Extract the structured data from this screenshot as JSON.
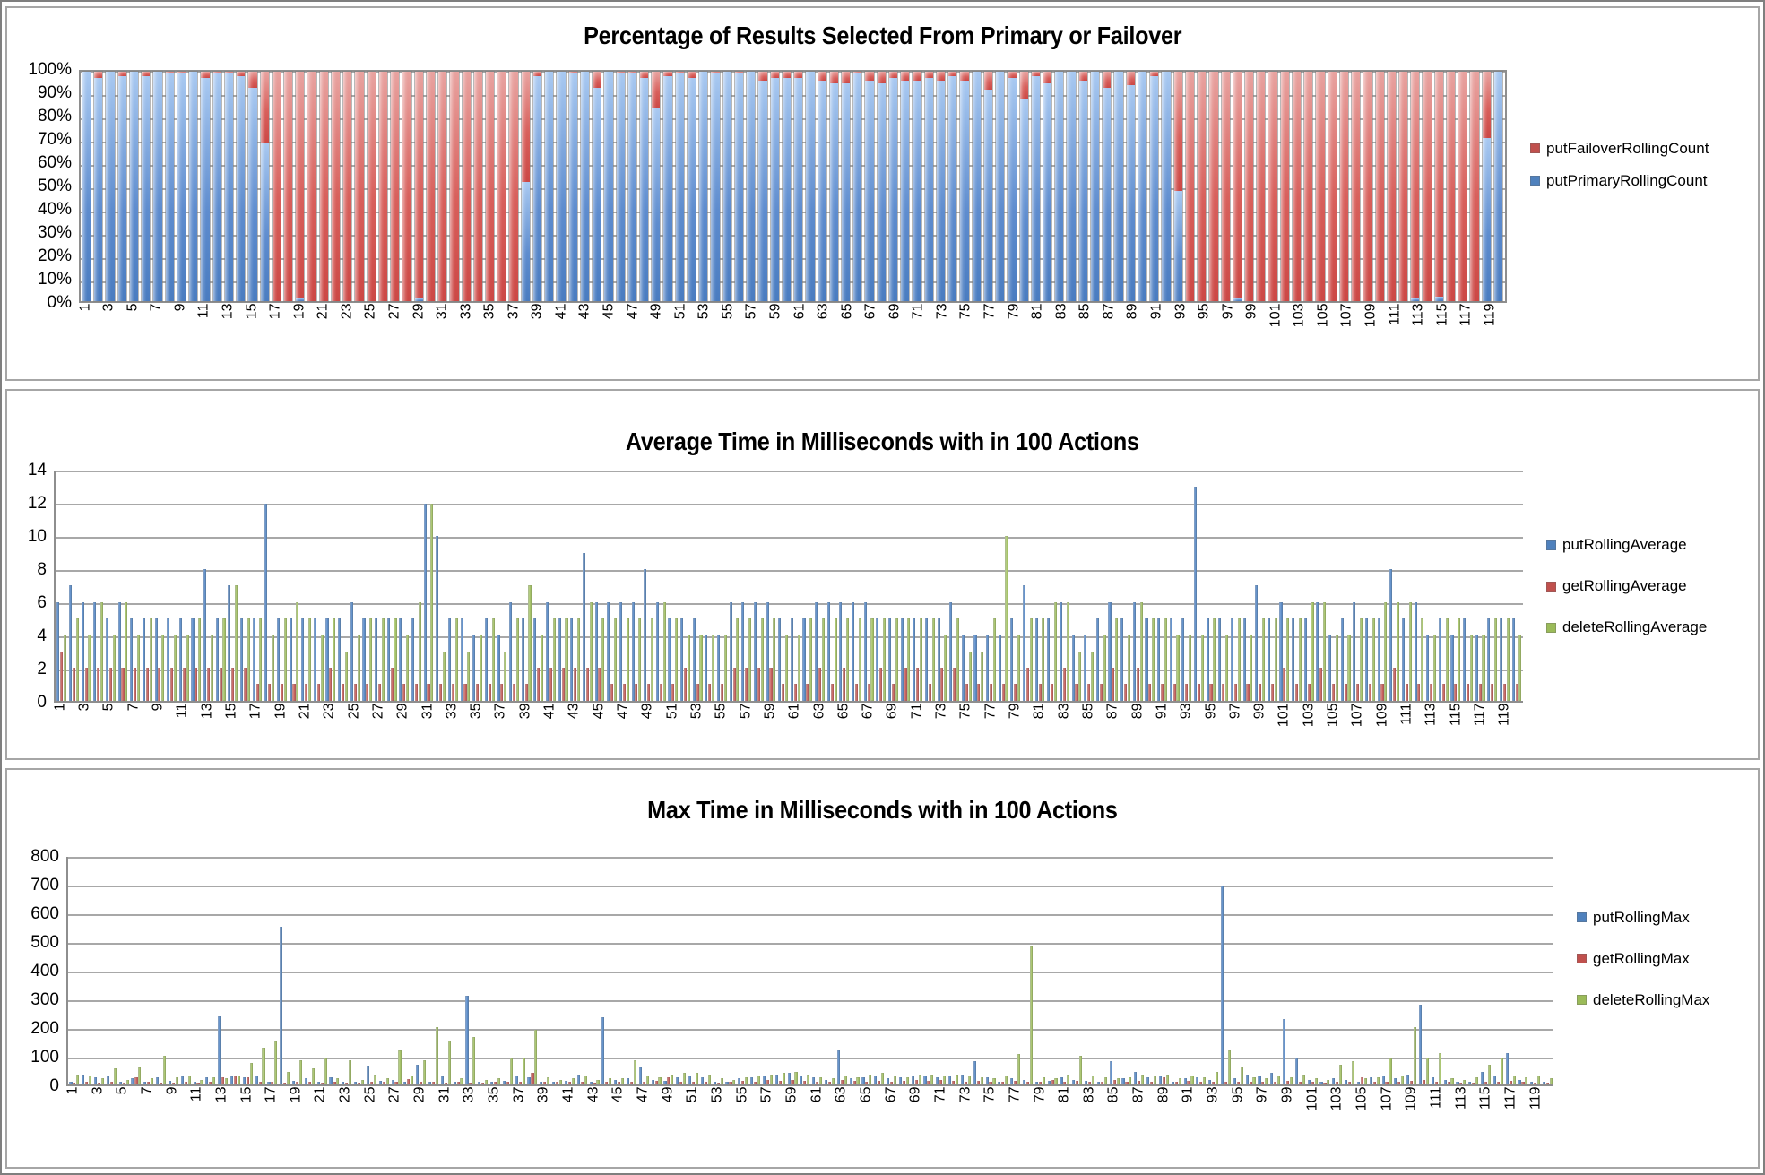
{
  "x_axis": {
    "count": 120,
    "tick_labels": [
      1,
      3,
      5,
      7,
      9,
      11,
      13,
      15,
      17,
      19,
      21,
      23,
      25,
      27,
      29,
      31,
      33,
      35,
      37,
      39,
      41,
      43,
      45,
      47,
      49,
      51,
      53,
      55,
      57,
      59,
      61,
      63,
      65,
      67,
      69,
      71,
      73,
      75,
      77,
      79,
      81,
      83,
      85,
      87,
      89,
      91,
      93,
      95,
      97,
      99,
      101,
      103,
      105,
      107,
      109,
      111,
      113,
      115,
      117,
      119
    ]
  },
  "colors": {
    "blue": "#4F81BD",
    "red": "#C0504D",
    "green": "#9BBB59"
  },
  "chart_data": [
    {
      "type": "bar",
      "variant": "stacked-percent",
      "title": "Percentage of Results Selected From Primary or Failover",
      "ylim": [
        0,
        100
      ],
      "y_ticks": [
        "100%",
        "90%",
        "80%",
        "70%",
        "60%",
        "50%",
        "40%",
        "30%",
        "20%",
        "10%",
        "0%"
      ],
      "grid": true,
      "legend_position": "right",
      "legend": [
        {
          "label": "putFailoverRollingCount",
          "color": "#C0504D"
        },
        {
          "label": "putPrimaryRollingCount",
          "color": "#4F81BD"
        }
      ],
      "series": [
        {
          "name": "putPrimaryRollingCount",
          "color": "#4F81BD",
          "values": [
            100,
            97,
            100,
            98,
            100,
            98,
            100,
            99,
            99,
            100,
            97,
            99,
            99,
            98,
            93,
            69,
            0,
            0,
            1,
            0,
            0,
            0,
            0,
            0,
            0,
            0,
            0,
            0,
            1,
            0,
            0,
            0,
            0,
            0,
            0,
            0,
            0,
            52,
            98,
            100,
            100,
            99,
            100,
            93,
            100,
            99,
            99,
            97,
            84,
            98,
            99,
            97,
            100,
            99,
            100,
            99,
            100,
            96,
            97,
            97,
            97,
            100,
            96,
            95,
            95,
            99,
            96,
            95,
            97,
            96,
            96,
            97,
            96,
            98,
            96,
            100,
            92,
            100,
            97,
            88,
            98,
            95,
            100,
            100,
            96,
            100,
            93,
            100,
            94,
            100,
            98,
            100,
            48,
            0,
            0,
            0,
            0,
            1,
            0,
            0,
            0,
            0,
            0,
            0,
            0,
            0,
            0,
            0,
            0,
            0,
            0,
            0,
            1,
            0,
            2,
            0,
            0,
            0,
            71,
            100
          ]
        },
        {
          "name": "putFailoverRollingCount",
          "color": "#C0504D",
          "values": [
            0,
            3,
            0,
            2,
            0,
            2,
            0,
            1,
            1,
            0,
            3,
            1,
            1,
            2,
            7,
            31,
            100,
            100,
            99,
            100,
            100,
            100,
            100,
            100,
            100,
            100,
            100,
            100,
            99,
            100,
            100,
            100,
            100,
            100,
            100,
            100,
            100,
            48,
            2,
            0,
            0,
            1,
            0,
            7,
            0,
            1,
            1,
            3,
            16,
            2,
            1,
            3,
            0,
            1,
            0,
            1,
            0,
            4,
            3,
            3,
            3,
            0,
            4,
            5,
            5,
            1,
            4,
            5,
            3,
            4,
            4,
            3,
            4,
            2,
            4,
            0,
            8,
            0,
            3,
            12,
            2,
            5,
            0,
            0,
            4,
            0,
            7,
            0,
            6,
            0,
            2,
            0,
            52,
            100,
            100,
            100,
            100,
            99,
            100,
            100,
            100,
            100,
            100,
            100,
            100,
            100,
            100,
            100,
            100,
            100,
            100,
            100,
            99,
            100,
            98,
            100,
            100,
            100,
            29,
            0
          ]
        }
      ]
    },
    {
      "type": "bar",
      "variant": "grouped",
      "title": "Average Time in Milliseconds with in 100 Actions",
      "ylim": [
        0,
        14
      ],
      "y_ticks": [
        "14",
        "12",
        "10",
        "8",
        "6",
        "4",
        "2",
        "0"
      ],
      "grid": true,
      "legend_position": "right",
      "legend": [
        {
          "label": "putRollingAverage",
          "color": "#4F81BD"
        },
        {
          "label": "getRollingAverage",
          "color": "#C0504D"
        },
        {
          "label": "deleteRollingAverage",
          "color": "#9BBB59"
        }
      ],
      "series": [
        {
          "name": "putRollingAverage",
          "color": "#4F81BD",
          "values": [
            6,
            7,
            6,
            6,
            5,
            6,
            5,
            5,
            5,
            5,
            5,
            5,
            8,
            5,
            7,
            5,
            5,
            12,
            5,
            5,
            5,
            5,
            5,
            5,
            6,
            5,
            5,
            5,
            5,
            5,
            12,
            10,
            5,
            5,
            4,
            5,
            4,
            6,
            5,
            5,
            6,
            5,
            5,
            9,
            6,
            6,
            6,
            6,
            8,
            6,
            5,
            5,
            5,
            4,
            4,
            6,
            6,
            6,
            6,
            5,
            5,
            5,
            6,
            6,
            6,
            6,
            6,
            5,
            5,
            5,
            5,
            5,
            5,
            6,
            4,
            4,
            4,
            4,
            5,
            7,
            5,
            5,
            6,
            4,
            4,
            5,
            6,
            5,
            6,
            5,
            5,
            5,
            5,
            13,
            5,
            5,
            5,
            5,
            7,
            5,
            6,
            5,
            5,
            6,
            4,
            5,
            6,
            5,
            5,
            8,
            5,
            6,
            4,
            5,
            4,
            5,
            4,
            5,
            5,
            5
          ]
        },
        {
          "name": "getRollingAverage",
          "color": "#C0504D",
          "values": [
            3,
            2,
            2,
            2,
            2,
            2,
            2,
            2,
            2,
            2,
            2,
            2,
            2,
            2,
            2,
            2,
            1,
            1,
            1,
            1,
            1,
            1,
            2,
            1,
            1,
            1,
            1,
            2,
            1,
            1,
            1,
            1,
            1,
            1,
            1,
            1,
            1,
            1,
            1,
            2,
            2,
            2,
            2,
            2,
            2,
            1,
            1,
            1,
            1,
            1,
            1,
            2,
            1,
            1,
            1,
            2,
            2,
            2,
            2,
            1,
            1,
            1,
            2,
            1,
            2,
            1,
            1,
            2,
            1,
            2,
            2,
            1,
            2,
            2,
            1,
            1,
            1,
            1,
            1,
            2,
            1,
            1,
            2,
            1,
            1,
            1,
            2,
            1,
            2,
            1,
            1,
            1,
            1,
            1,
            1,
            1,
            1,
            1,
            1,
            1,
            2,
            1,
            1,
            2,
            1,
            1,
            1,
            1,
            1,
            2,
            1,
            1,
            1,
            1,
            1,
            1,
            1,
            1,
            1,
            1
          ]
        },
        {
          "name": "deleteRollingAverage",
          "color": "#9BBB59",
          "values": [
            4,
            5,
            4,
            6,
            4,
            6,
            4,
            5,
            4,
            4,
            4,
            5,
            4,
            5,
            7,
            5,
            5,
            4,
            5,
            6,
            5,
            4,
            5,
            3,
            4,
            5,
            5,
            5,
            4,
            6,
            12,
            3,
            5,
            3,
            4,
            5,
            3,
            5,
            7,
            4,
            5,
            5,
            5,
            6,
            5,
            5,
            5,
            5,
            5,
            6,
            5,
            4,
            4,
            4,
            4,
            5,
            5,
            5,
            5,
            4,
            4,
            5,
            5,
            5,
            5,
            5,
            5,
            5,
            5,
            5,
            5,
            5,
            4,
            5,
            3,
            3,
            5,
            10,
            4,
            5,
            5,
            6,
            6,
            3,
            3,
            4,
            5,
            4,
            6,
            5,
            5,
            4,
            4,
            4,
            5,
            4,
            5,
            4,
            5,
            5,
            5,
            5,
            6,
            6,
            4,
            4,
            5,
            5,
            6,
            6,
            6,
            5,
            4,
            5,
            5,
            4,
            4,
            5,
            5,
            4
          ]
        }
      ]
    },
    {
      "type": "bar",
      "variant": "grouped",
      "title": "Max Time in Milliseconds with in 100 Actions",
      "ylim": [
        0,
        800
      ],
      "y_ticks": [
        "800",
        "700",
        "600",
        "500",
        "400",
        "300",
        "200",
        "100",
        "0"
      ],
      "grid": true,
      "legend_position": "right",
      "legend": [
        {
          "label": "putRollingMax",
          "color": "#4F81BD"
        },
        {
          "label": "getRollingMax",
          "color": "#C0504D"
        },
        {
          "label": "deleteRollingMax",
          "color": "#9BBB59"
        }
      ],
      "series": [
        {
          "name": "putRollingMax",
          "color": "#4F81BD",
          "values": [
            8,
            35,
            25,
            30,
            8,
            20,
            10,
            25,
            12,
            28,
            8,
            25,
            240,
            28,
            25,
            30,
            10,
            555,
            12,
            20,
            8,
            25,
            10,
            8,
            65,
            12,
            15,
            8,
            70,
            10,
            28,
            8,
            310,
            10,
            8,
            12,
            30,
            25,
            10,
            8,
            12,
            35,
            10,
            235,
            15,
            20,
            60,
            15,
            12,
            25,
            30,
            25,
            10,
            8,
            20,
            25,
            30,
            35,
            40,
            30,
            25,
            15,
            120,
            20,
            25,
            30,
            20,
            25,
            30,
            30,
            25,
            30,
            35,
            80,
            25,
            10,
            20,
            15,
            10,
            12,
            25,
            15,
            12,
            10,
            80,
            20,
            45,
            25,
            30,
            10,
            20,
            25,
            15,
            700,
            20,
            35,
            30,
            40,
            230,
            90,
            15,
            10,
            20,
            15,
            10,
            25,
            30,
            20,
            35,
            280,
            25,
            15,
            10,
            8,
            45,
            30,
            110,
            15,
            10,
            8
          ]
        },
        {
          "name": "getRollingMax",
          "color": "#C0504D",
          "values": [
            5,
            8,
            6,
            10,
            6,
            25,
            8,
            6,
            5,
            8,
            6,
            10,
            25,
            28,
            25,
            10,
            8,
            6,
            8,
            10,
            6,
            8,
            6,
            5,
            8,
            10,
            8,
            18,
            10,
            8,
            6,
            8,
            6,
            6,
            8,
            10,
            8,
            40,
            10,
            8,
            10,
            8,
            6,
            8,
            10,
            8,
            10,
            12,
            25,
            8,
            10,
            8,
            6,
            10,
            12,
            10,
            15,
            12,
            15,
            12,
            10,
            8,
            15,
            12,
            10,
            12,
            10,
            12,
            15,
            12,
            15,
            12,
            10,
            12,
            10,
            8,
            12,
            10,
            8,
            15,
            10,
            12,
            8,
            10,
            15,
            10,
            12,
            10,
            25,
            8,
            12,
            10,
            8,
            10,
            8,
            10,
            8,
            10,
            12,
            10,
            8,
            6,
            10,
            8,
            25,
            8,
            10,
            8,
            12,
            15,
            10,
            8,
            6,
            5,
            10,
            8,
            12,
            8,
            6,
            5
          ]
        },
        {
          "name": "deleteRollingMax",
          "color": "#9BBB59",
          "values": [
            35,
            30,
            20,
            55,
            15,
            60,
            20,
            100,
            25,
            30,
            15,
            25,
            20,
            30,
            75,
            130,
            150,
            45,
            85,
            55,
            90,
            20,
            85,
            15,
            35,
            20,
            120,
            30,
            85,
            200,
            155,
            20,
            165,
            15,
            20,
            90,
            95,
            190,
            25,
            15,
            20,
            30,
            15,
            20,
            20,
            85,
            30,
            25,
            35,
            40,
            40,
            35,
            20,
            15,
            25,
            30,
            35,
            40,
            45,
            35,
            25,
            20,
            30,
            25,
            35,
            40,
            30,
            25,
            35,
            35,
            30,
            35,
            30,
            25,
            20,
            30,
            105,
            485,
            25,
            20,
            35,
            100,
            30,
            25,
            20,
            25,
            35,
            30,
            35,
            20,
            30,
            25,
            45,
            120,
            60,
            25,
            20,
            30,
            25,
            35,
            20,
            15,
            70,
            80,
            20,
            25,
            90,
            30,
            200,
            95,
            110,
            20,
            15,
            25,
            70,
            95,
            30,
            25,
            30,
            20
          ]
        }
      ]
    }
  ]
}
